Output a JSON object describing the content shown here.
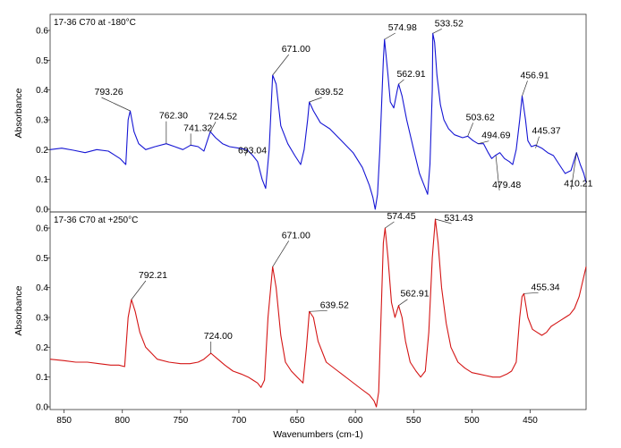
{
  "chart_data": {
    "type": "line",
    "xlabel": "Wavenumbers (cm-1)",
    "x_ticks": [
      850,
      800,
      750,
      700,
      650,
      600,
      550,
      500,
      450
    ],
    "xlim": [
      862,
      402
    ],
    "x_reversed": true,
    "panels": [
      {
        "title": "17-36 C70 at -180°C",
        "ylabel": "Absorbance",
        "ylim": [
          0.0,
          0.63
        ],
        "y_ticks": [
          0.0,
          0.1,
          0.2,
          0.3,
          0.4,
          0.5,
          0.6
        ],
        "y_tick_labels": [
          "0.0",
          "0.1",
          "0.2",
          "0.3",
          "0.4",
          "0.5",
          "0.6"
        ],
        "color": "#1515d4",
        "series": {
          "x": [
            862,
            852,
            842,
            832,
            822,
            812,
            802,
            797,
            795,
            793.26,
            790,
            786,
            780,
            772,
            762.3,
            755,
            748,
            741.32,
            735,
            730,
            724.52,
            720,
            714,
            708,
            700,
            693.04,
            688,
            684,
            680,
            677,
            674,
            671,
            668,
            664,
            658,
            652,
            647,
            644,
            641,
            639.52,
            636,
            630,
            622,
            612,
            602,
            594,
            588,
            585,
            583,
            581,
            579,
            576,
            574.98,
            572,
            570,
            567,
            564,
            562.91,
            560,
            556,
            550,
            545,
            541,
            538,
            536,
            534,
            533.52,
            532,
            530,
            527,
            524,
            520,
            515,
            508,
            503.62,
            499,
            494.69,
            490,
            486,
            483,
            480,
            476,
            472,
            468,
            465,
            462,
            459,
            456.91,
            454,
            452,
            449,
            445.37,
            440,
            435,
            430,
            425,
            420,
            415,
            410.21,
            407,
            404,
            402
          ],
          "y": [
            0.2,
            0.205,
            0.198,
            0.19,
            0.2,
            0.195,
            0.17,
            0.15,
            0.3,
            0.33,
            0.26,
            0.22,
            0.2,
            0.21,
            0.22,
            0.21,
            0.2,
            0.215,
            0.21,
            0.195,
            0.26,
            0.24,
            0.22,
            0.21,
            0.205,
            0.2,
            0.18,
            0.16,
            0.1,
            0.07,
            0.2,
            0.45,
            0.42,
            0.28,
            0.22,
            0.18,
            0.15,
            0.2,
            0.3,
            0.36,
            0.33,
            0.29,
            0.27,
            0.23,
            0.19,
            0.14,
            0.08,
            0.04,
            0.0,
            0.05,
            0.2,
            0.5,
            0.57,
            0.45,
            0.36,
            0.34,
            0.4,
            0.42,
            0.38,
            0.3,
            0.2,
            0.12,
            0.08,
            0.05,
            0.15,
            0.4,
            0.59,
            0.56,
            0.45,
            0.35,
            0.3,
            0.27,
            0.25,
            0.24,
            0.245,
            0.23,
            0.22,
            0.22,
            0.19,
            0.17,
            0.18,
            0.19,
            0.17,
            0.16,
            0.15,
            0.2,
            0.3,
            0.38,
            0.3,
            0.23,
            0.21,
            0.215,
            0.205,
            0.19,
            0.18,
            0.15,
            0.12,
            0.13,
            0.19,
            0.15,
            0.12,
            0.09
          ]
        },
        "annotations": [
          {
            "label": "793.26",
            "x": 793.26,
            "y": 0.33
          },
          {
            "label": "762.30",
            "x": 762.3,
            "y": 0.22
          },
          {
            "label": "741.32",
            "x": 741.32,
            "y": 0.215
          },
          {
            "label": "724.52",
            "x": 724.52,
            "y": 0.26
          },
          {
            "label": "693.04",
            "x": 693.04,
            "y": 0.2
          },
          {
            "label": "671.00",
            "x": 671.0,
            "y": 0.45
          },
          {
            "label": "639.52",
            "x": 639.52,
            "y": 0.36
          },
          {
            "label": "574.98",
            "x": 574.98,
            "y": 0.57
          },
          {
            "label": "562.91",
            "x": 562.91,
            "y": 0.42
          },
          {
            "label": "533.52",
            "x": 533.52,
            "y": 0.59
          },
          {
            "label": "503.62",
            "x": 503.62,
            "y": 0.245
          },
          {
            "label": "494.69",
            "x": 494.69,
            "y": 0.22
          },
          {
            "label": "479.48",
            "x": 479.48,
            "y": 0.18
          },
          {
            "label": "456.91",
            "x": 456.91,
            "y": 0.38
          },
          {
            "label": "445.37",
            "x": 445.37,
            "y": 0.205
          },
          {
            "label": "410.21",
            "x": 410.21,
            "y": 0.19
          }
        ]
      },
      {
        "title": "17-36 C70 at +250°C",
        "ylabel": "Absorbance",
        "ylim": [
          0.0,
          0.63
        ],
        "y_ticks": [
          0.0,
          0.1,
          0.2,
          0.3,
          0.4,
          0.5,
          0.6
        ],
        "y_tick_labels": [
          "0.0",
          "0.1",
          "0.2",
          "0.3",
          "0.4",
          "0.5",
          "0.6"
        ],
        "color": "#d41515",
        "series": {
          "x": [
            862,
            850,
            840,
            830,
            820,
            810,
            803,
            798,
            795,
            792.21,
            789,
            785,
            780,
            770,
            760,
            750,
            742,
            735,
            730,
            724.0,
            718,
            712,
            705,
            698,
            692,
            688,
            684,
            681,
            678,
            675,
            671,
            668,
            664,
            660,
            655,
            650,
            645,
            642,
            639.52,
            636,
            632,
            625,
            615,
            605,
            595,
            588,
            584,
            582,
            580,
            578,
            576,
            574.45,
            572,
            569,
            566,
            562.91,
            560,
            557,
            553,
            548,
            544,
            540,
            537,
            534,
            531.43,
            529,
            526,
            522,
            518,
            512,
            506,
            500,
            494,
            488,
            482,
            476,
            470,
            466,
            462,
            459,
            457,
            455.34,
            452,
            448,
            444,
            440,
            436,
            432,
            428,
            424,
            420,
            416,
            412,
            408,
            405,
            402
          ],
          "y": [
            0.16,
            0.155,
            0.15,
            0.15,
            0.145,
            0.14,
            0.14,
            0.135,
            0.3,
            0.36,
            0.32,
            0.25,
            0.2,
            0.16,
            0.15,
            0.145,
            0.145,
            0.15,
            0.16,
            0.18,
            0.16,
            0.14,
            0.12,
            0.11,
            0.1,
            0.09,
            0.08,
            0.065,
            0.09,
            0.3,
            0.47,
            0.4,
            0.24,
            0.15,
            0.12,
            0.1,
            0.08,
            0.2,
            0.32,
            0.3,
            0.22,
            0.15,
            0.12,
            0.09,
            0.06,
            0.04,
            0.02,
            0.0,
            0.05,
            0.3,
            0.55,
            0.6,
            0.5,
            0.35,
            0.3,
            0.34,
            0.3,
            0.22,
            0.15,
            0.12,
            0.1,
            0.12,
            0.25,
            0.5,
            0.63,
            0.55,
            0.4,
            0.28,
            0.2,
            0.15,
            0.13,
            0.115,
            0.11,
            0.105,
            0.1,
            0.1,
            0.11,
            0.12,
            0.15,
            0.3,
            0.37,
            0.38,
            0.3,
            0.26,
            0.25,
            0.24,
            0.25,
            0.27,
            0.28,
            0.29,
            0.3,
            0.31,
            0.33,
            0.37,
            0.42,
            0.47
          ]
        },
        "annotations": [
          {
            "label": "792.21",
            "x": 792.21,
            "y": 0.36
          },
          {
            "label": "724.00",
            "x": 724.0,
            "y": 0.18
          },
          {
            "label": "671.00",
            "x": 671.0,
            "y": 0.47
          },
          {
            "label": "639.52",
            "x": 639.52,
            "y": 0.32
          },
          {
            "label": "574.45",
            "x": 574.45,
            "y": 0.6
          },
          {
            "label": "562.91",
            "x": 562.91,
            "y": 0.34
          },
          {
            "label": "531.43",
            "x": 531.43,
            "y": 0.63
          },
          {
            "label": "455.34",
            "x": 455.34,
            "y": 0.38
          }
        ]
      }
    ]
  }
}
